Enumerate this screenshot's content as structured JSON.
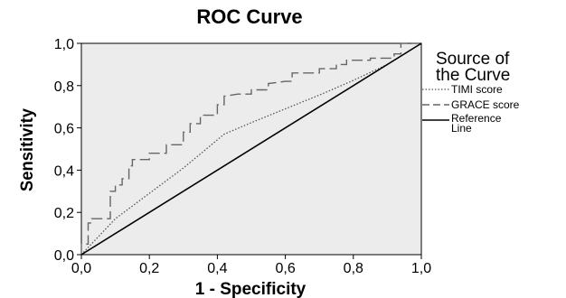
{
  "chart_data": {
    "type": "line",
    "title": "ROC Curve",
    "xlabel": "1 - Specificity",
    "ylabel": "Sensitivity",
    "xlim": [
      0,
      1
    ],
    "ylim": [
      0,
      1
    ],
    "xticks": [
      "0,0",
      "0,2",
      "0,4",
      "0,6",
      "0,8",
      "1,0"
    ],
    "yticks": [
      "0,0",
      "0,2",
      "0,4",
      "0,6",
      "0,8",
      "1,0"
    ],
    "plot_background": "#ececec",
    "legend": {
      "title": "Source of the Curve",
      "placement": "right",
      "entries": [
        "TIMI score",
        "GRACE score",
        "Reference Line"
      ]
    },
    "series": [
      {
        "name": "TIMI score",
        "style": "dotted",
        "color": "#555555",
        "x": [
          0,
          0.1,
          0.2,
          0.3,
          0.42,
          0.5,
          0.6,
          0.7,
          0.8,
          0.9,
          1.0
        ],
        "y": [
          0,
          0.17,
          0.29,
          0.41,
          0.57,
          0.625,
          0.69,
          0.755,
          0.825,
          0.9,
          1.0
        ]
      },
      {
        "name": "GRACE score",
        "style": "dashed",
        "color": "#666666",
        "x": [
          0,
          0,
          0.02,
          0.02,
          0.03,
          0.03,
          0.085,
          0.085,
          0.1,
          0.1,
          0.12,
          0.12,
          0.14,
          0.14,
          0.15,
          0.15,
          0.2,
          0.2,
          0.25,
          0.25,
          0.3,
          0.3,
          0.32,
          0.32,
          0.35,
          0.35,
          0.4,
          0.4,
          0.42,
          0.42,
          0.46,
          0.5,
          0.5,
          0.55,
          0.55,
          0.6,
          0.62,
          0.62,
          0.7,
          0.7,
          0.75,
          0.75,
          0.78,
          0.78,
          0.85,
          0.85,
          0.92,
          0.92,
          0.94,
          0.94,
          1.0
        ],
        "y": [
          0,
          0.05,
          0.05,
          0.15,
          0.15,
          0.17,
          0.17,
          0.3,
          0.3,
          0.33,
          0.33,
          0.36,
          0.36,
          0.42,
          0.42,
          0.45,
          0.45,
          0.48,
          0.48,
          0.52,
          0.52,
          0.58,
          0.58,
          0.62,
          0.62,
          0.66,
          0.66,
          0.71,
          0.71,
          0.75,
          0.76,
          0.76,
          0.78,
          0.78,
          0.81,
          0.82,
          0.82,
          0.86,
          0.86,
          0.88,
          0.88,
          0.9,
          0.9,
          0.92,
          0.92,
          0.93,
          0.93,
          0.95,
          0.95,
          1.0,
          1.0
        ]
      },
      {
        "name": "Reference Line",
        "style": "solid",
        "color": "#000000",
        "x": [
          0,
          1
        ],
        "y": [
          0,
          1
        ]
      }
    ]
  }
}
